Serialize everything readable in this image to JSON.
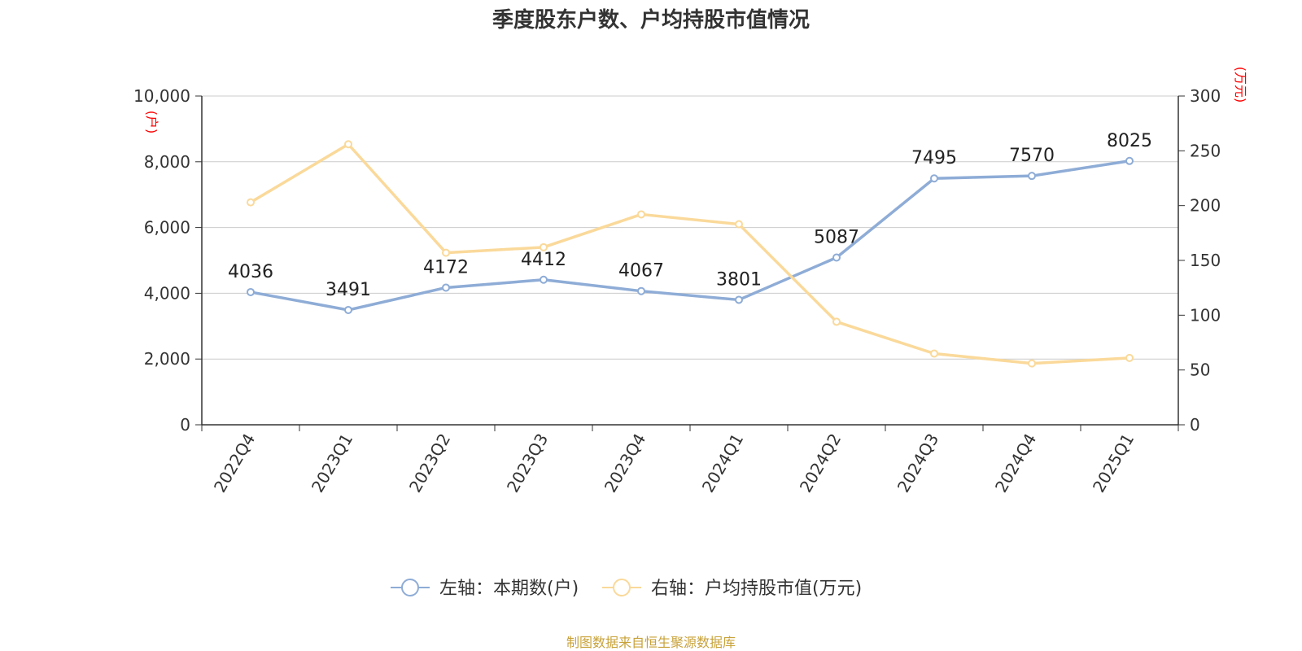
{
  "chart_data": {
    "type": "line",
    "title": "季度股东户数、户均持股市值情况",
    "categories": [
      "2022Q4",
      "2023Q1",
      "2023Q2",
      "2023Q3",
      "2023Q4",
      "2024Q1",
      "2024Q2",
      "2024Q3",
      "2024Q4",
      "2025Q1"
    ],
    "left_axis": {
      "unit": "(户)",
      "range": [
        0,
        10000
      ],
      "ticks": [
        "0",
        "2,000",
        "4,000",
        "6,000",
        "8,000",
        "10,000"
      ]
    },
    "right_axis": {
      "unit": "(万元)",
      "range": [
        0,
        300
      ],
      "ticks": [
        "0",
        "50",
        "100",
        "150",
        "200",
        "250",
        "300"
      ]
    },
    "series": [
      {
        "name": "左轴：本期数(户)",
        "axis": "left",
        "color": "#8eacd6",
        "values": [
          4036,
          3491,
          4172,
          4412,
          4067,
          3801,
          5087,
          7495,
          7570,
          8025
        ],
        "labels": [
          "4036",
          "3491",
          "4172",
          "4412",
          "4067",
          "3801",
          "5087",
          "7495",
          "7570",
          "8025"
        ]
      },
      {
        "name": "右轴：户均持股市值(万元)",
        "axis": "right",
        "color": "#fad99a",
        "values": [
          203,
          256,
          157,
          162,
          192,
          183,
          94,
          65,
          56,
          61
        ]
      }
    ],
    "grid": true,
    "legend_position": "bottom"
  },
  "source_note": "制图数据来自恒生聚源数据库"
}
